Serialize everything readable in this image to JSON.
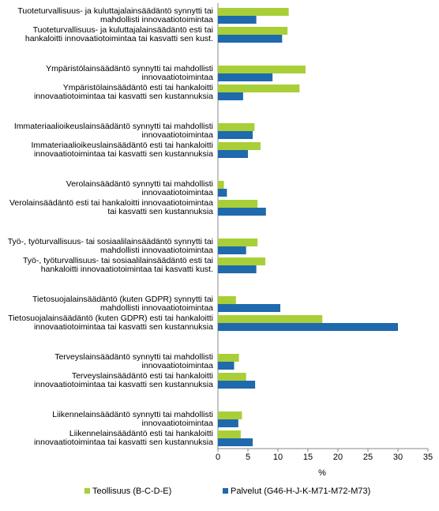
{
  "chart_data": {
    "type": "hbar",
    "categories": [
      "Tuoteturvallisuus- ja kuluttajalainsäädäntö synnytti tai mahdollisti innovaatiotoimintaa",
      "Tuoteturvallisuus- ja kuluttajalainsäädäntö esti tai hankaloitti innovaatiotoimintaa tai kasvatti sen kust.",
      "Ympäristölainsäädäntö synnytti tai mahdollisti innovaatiotoimintaa",
      "Ympäristölainsäädäntö esti tai hankaloitti innovaatiotoimintaa tai kasvatti sen kustannuksia",
      "Immateriaalioikeuslainsäädäntö synnytti tai mahdollisti innovaatiotoimintaa",
      "Immateriaalioikeuslainsäädäntö esti tai hankaloitti innovaatiotoimintaa tai kasvatti sen kustannuksia",
      "Verolainsäädäntö synnytti tai mahdollisti innovaatiotoimintaa",
      "Verolainsäädäntö esti tai hankaloitti innovaatiotoimintaa tai kasvatti sen kustannuksia",
      "Työ-, työturvallisuus- tai sosiaalilainsäädäntö synnytti tai mahdollisti innovaatiotoimintaa",
      "Työ-, työturvallisuus- tai sosiaalilainsäädäntö esti tai hankaloitti innovaatiotoimintaa tai kasvatti kust.",
      "Tietosuojalainsäädäntö (kuten GDPR) synnytti tai mahdollisti innovaatiotoimintaa",
      "Tietosuojalainsäädäntö (kuten GDPR) esti tai hankaloitti innovaatiotoimintaa tai kasvatti sen kustannuksia",
      "Terveyslainsäädäntö synnytti tai mahdollisti innovaatiotoimintaa",
      "Terveyslainsäädäntö esti tai hankaloitti innovaatiotoimintaa tai kasvatti sen kustannuksia",
      "Liikennelainsäädäntö synnytti tai mahdollisti innovaatiotoimintaa",
      "Liikennelainsäädäntö esti tai hankaloitti innovaatiotoimintaa tai kasvatti sen kustannuksia"
    ],
    "series": [
      {
        "name": "Teollisuus (B-C-D-E)",
        "color": "#a8cf38",
        "values": [
          11.8,
          11.6,
          14.6,
          13.6,
          6.1,
          7.1,
          1.0,
          6.6,
          6.6,
          7.9,
          3.0,
          17.4,
          3.5,
          4.7,
          4.0,
          3.8
        ]
      },
      {
        "name": "Palvelut (G46-H-J-K-M71-M72-M73)",
        "color": "#1f69ad",
        "values": [
          6.4,
          10.7,
          9.1,
          4.2,
          5.8,
          5.0,
          1.5,
          8.0,
          4.7,
          6.4,
          10.4,
          30.0,
          2.7,
          6.2,
          3.4,
          5.8
        ]
      }
    ],
    "xlabel": "%",
    "xlim": [
      0,
      35
    ],
    "xticks": [
      0,
      5,
      10,
      15,
      20,
      25,
      30,
      35
    ],
    "grid": false
  }
}
